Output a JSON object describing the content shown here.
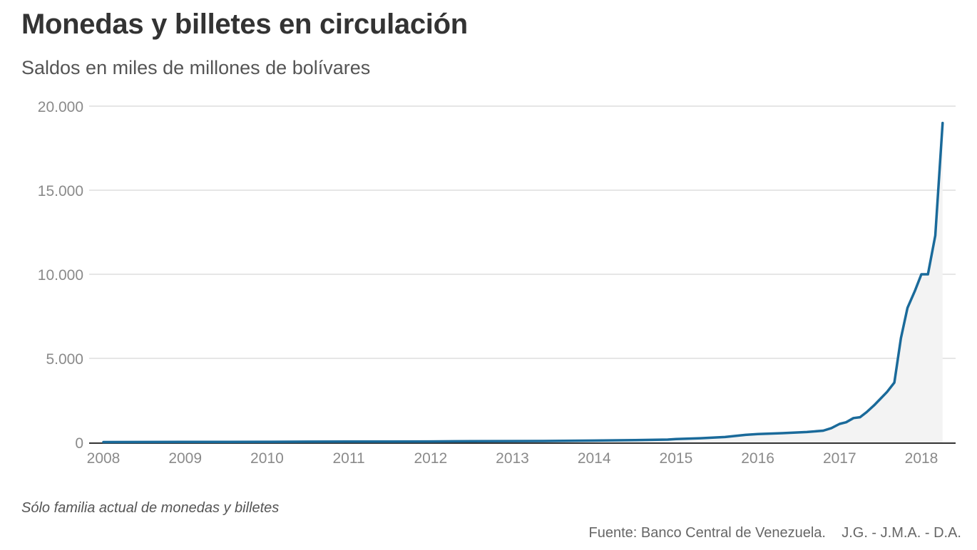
{
  "header": {
    "title": "Monedas y billetes en circulación",
    "subtitle": "Saldos en miles de millones de bolívares"
  },
  "footer": {
    "note": "Sólo familia actual de monedas y billetes",
    "source": "Fuente: Banco Central de Venezuela.    J.G. - J.M.A. - D.A."
  },
  "colors": {
    "line": "#1a6a9a",
    "area": "#f3f3f3",
    "grid": "#e6e6e6",
    "axis": "#333333"
  },
  "chart_data": {
    "type": "area",
    "title": "Monedas y billetes en circulación",
    "subtitle": "Saldos en miles de millones de bolívares",
    "xlabel": "",
    "ylabel": "",
    "xlim": [
      2008,
      2018.35
    ],
    "ylim": [
      0,
      20000
    ],
    "grid": true,
    "legend": "none",
    "x_ticks": [
      2008,
      2009,
      2010,
      2011,
      2012,
      2013,
      2014,
      2015,
      2016,
      2017,
      2018
    ],
    "x_tick_labels": [
      "2008",
      "2009",
      "2010",
      "2011",
      "2012",
      "2013",
      "2014",
      "2015",
      "2016",
      "2017",
      "2018"
    ],
    "y_ticks": [
      0,
      5000,
      10000,
      15000,
      20000
    ],
    "y_tick_labels": [
      "0",
      "5.000",
      "10.000",
      "15.000",
      "20.000"
    ],
    "series": [
      {
        "name": "Monedas y billetes en circulación",
        "x": [
          2008.0,
          2008.5,
          2009.0,
          2009.5,
          2010.0,
          2010.5,
          2011.0,
          2011.5,
          2012.0,
          2012.5,
          2013.0,
          2013.5,
          2014.0,
          2014.5,
          2014.9,
          2015.0,
          2015.3,
          2015.6,
          2015.85,
          2016.0,
          2016.3,
          2016.6,
          2016.8,
          2016.9,
          2017.0,
          2017.08,
          2017.17,
          2017.25,
          2017.33,
          2017.42,
          2017.5,
          2017.58,
          2017.67,
          2017.75,
          2017.83,
          2017.92,
          2018.0,
          2018.08,
          2018.17,
          2018.26
        ],
        "values": [
          20,
          25,
          30,
          35,
          40,
          45,
          50,
          55,
          60,
          70,
          80,
          90,
          110,
          140,
          170,
          200,
          250,
          320,
          450,
          500,
          550,
          620,
          700,
          850,
          1100,
          1200,
          1450,
          1500,
          1800,
          2200,
          2600,
          3000,
          3560,
          6200,
          8000,
          9000,
          10000,
          10000,
          12300,
          19000
        ]
      }
    ]
  }
}
